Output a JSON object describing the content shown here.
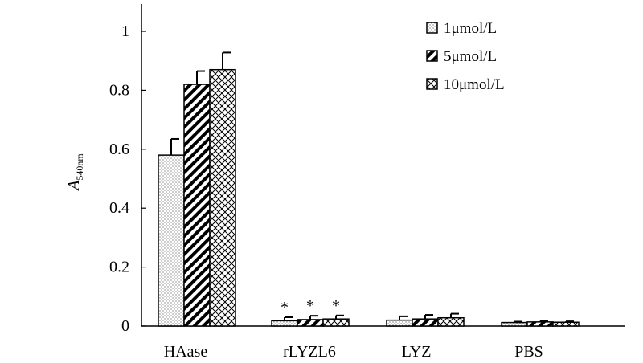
{
  "chart_data": {
    "type": "bar",
    "ylabel": {
      "main": "A",
      "sub": "540nm"
    },
    "ylim": [
      0,
      1.1
    ],
    "yticks": [
      {
        "value": 0,
        "label": "0"
      },
      {
        "value": 0.2,
        "label": "0.2"
      },
      {
        "value": 0.4,
        "label": "0.4"
      },
      {
        "value": 0.6,
        "label": "0.6"
      },
      {
        "value": 0.8,
        "label": "0.8"
      },
      {
        "value": 1,
        "label": "1"
      }
    ],
    "categories": [
      "HAase",
      "rLYZL6",
      "LYZ",
      "PBS"
    ],
    "series": [
      {
        "name": "1μmol/L",
        "pattern": "dots",
        "values": [
          0.58,
          0.018,
          0.02,
          0.012
        ],
        "errors": [
          0.055,
          0.012,
          0.013,
          0.003
        ]
      },
      {
        "name": "5μmol/L",
        "pattern": "diagonal",
        "values": [
          0.82,
          0.022,
          0.024,
          0.014
        ],
        "errors": [
          0.045,
          0.013,
          0.014,
          0.003
        ]
      },
      {
        "name": "10μmol/L",
        "pattern": "crosshatch",
        "values": [
          0.87,
          0.024,
          0.028,
          0.013
        ],
        "errors": [
          0.058,
          0.012,
          0.014,
          0.003
        ]
      }
    ],
    "annotations": [
      {
        "category": "rLYZL6",
        "series": 0,
        "text": "*"
      },
      {
        "category": "rLYZL6",
        "series": 1,
        "text": "*"
      },
      {
        "category": "rLYZL6",
        "series": 2,
        "text": "*"
      }
    ],
    "legend": {
      "placement": "top-right"
    },
    "grid": false,
    "colors": {
      "ink": "#000000",
      "fill": "#ffffff"
    }
  }
}
